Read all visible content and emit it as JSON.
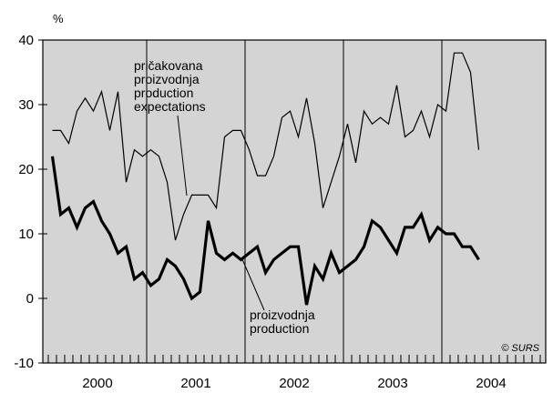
{
  "chart_data": {
    "type": "line",
    "y_unit": "%",
    "ylim": [
      -10,
      40
    ],
    "yticks": [
      -10,
      0,
      10,
      20,
      30,
      40
    ],
    "years": [
      "2000",
      "2001",
      "2002",
      "2003",
      "2004"
    ],
    "months_per_year": 12,
    "grid": false,
    "year_dividers": true,
    "plot_background": "#d4d4d4",
    "series": [
      {
        "name": "pričakovana proizvodnja / production expectations",
        "color": "#000000",
        "weight": "thin",
        "values": [
          26,
          26,
          24,
          29,
          31,
          29,
          32,
          26,
          32,
          18,
          23,
          22,
          23,
          22,
          18,
          9,
          13,
          16,
          16,
          16,
          14,
          25,
          26,
          26,
          23,
          19,
          19,
          22,
          28,
          29,
          25,
          31,
          24,
          14,
          18,
          22,
          27,
          21,
          29,
          27,
          28,
          27,
          33,
          25,
          26,
          29,
          25,
          30,
          29,
          38,
          38,
          35,
          23
        ]
      },
      {
        "name": "proizvodnja / production",
        "color": "#000000",
        "weight": "bold",
        "values": [
          22,
          13,
          14,
          11,
          14,
          15,
          12,
          10,
          7,
          8,
          3,
          4,
          2,
          3,
          6,
          5,
          3,
          0,
          1,
          12,
          7,
          6,
          7,
          6,
          7,
          8,
          4,
          6,
          7,
          8,
          8,
          -1,
          5,
          3,
          7,
          4,
          5,
          6,
          8,
          12,
          11,
          9,
          7,
          11,
          11,
          13,
          9,
          11,
          10,
          10,
          8,
          8,
          6
        ]
      }
    ],
    "annotations": [
      {
        "lines": [
          "pričakovana",
          "proizvodnja",
          "production",
          "expectations"
        ],
        "series": 0
      },
      {
        "lines": [
          "proizvodnja",
          "production"
        ],
        "series": 1
      }
    ],
    "credit": "© SURS"
  }
}
